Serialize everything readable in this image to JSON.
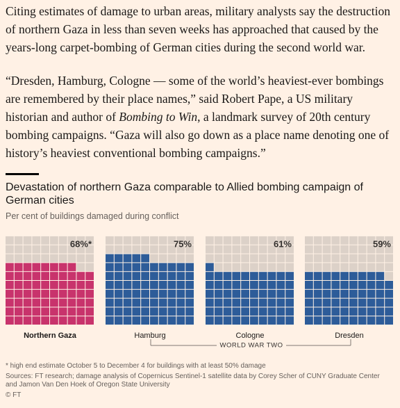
{
  "article": {
    "paragraphs": [
      {
        "parts": [
          "Citing estimates of damage to urban areas, military analysts say the destruction of northern Gaza in less than seven weeks has approached that caused by the years-long carpet-bombing of German cities during the second world war."
        ]
      },
      {
        "parts": [
          "“Dresden, Hamburg, Cologne — some of the world’s heaviest-ever bombings are remembered by their place names,” said Robert Pape, a US military historian and author of ",
          "Bombing to Win",
          ", a landmark survey of 20th century bombing campaigns. “Gaza will also go down as a place name denoting one of history’s heaviest conventional bombing campaigns.”"
        ]
      }
    ]
  },
  "chart_data": {
    "type": "waffle",
    "title": "Devastation of northern Gaza comparable to Allied bombing campaign of German cities",
    "subtitle": "Per cent of buildings damaged during conflict",
    "categories": [
      "Northern Gaza",
      "Hamburg",
      "Cologne",
      "Dresden"
    ],
    "values": [
      68,
      75,
      61,
      59
    ],
    "value_labels": [
      "68%*",
      "75%",
      "61%",
      "59%"
    ],
    "colors": [
      "#c8336c",
      "#2d5c99",
      "#2d5c99",
      "#2d5c99"
    ],
    "empty_color": "#dcd1c8",
    "group_label": "WORLD WAR TWO",
    "notes": [
      "* high end estimate October 5 to December 4 for buildings with at least 50% damage",
      "Sources: FT research; damage analysis of Copernicus Sentinel-1 satellite data by Corey Scher of CUNY Graduate Center and Jamon Van Den Hoek of Oregon State University",
      "© FT"
    ]
  }
}
